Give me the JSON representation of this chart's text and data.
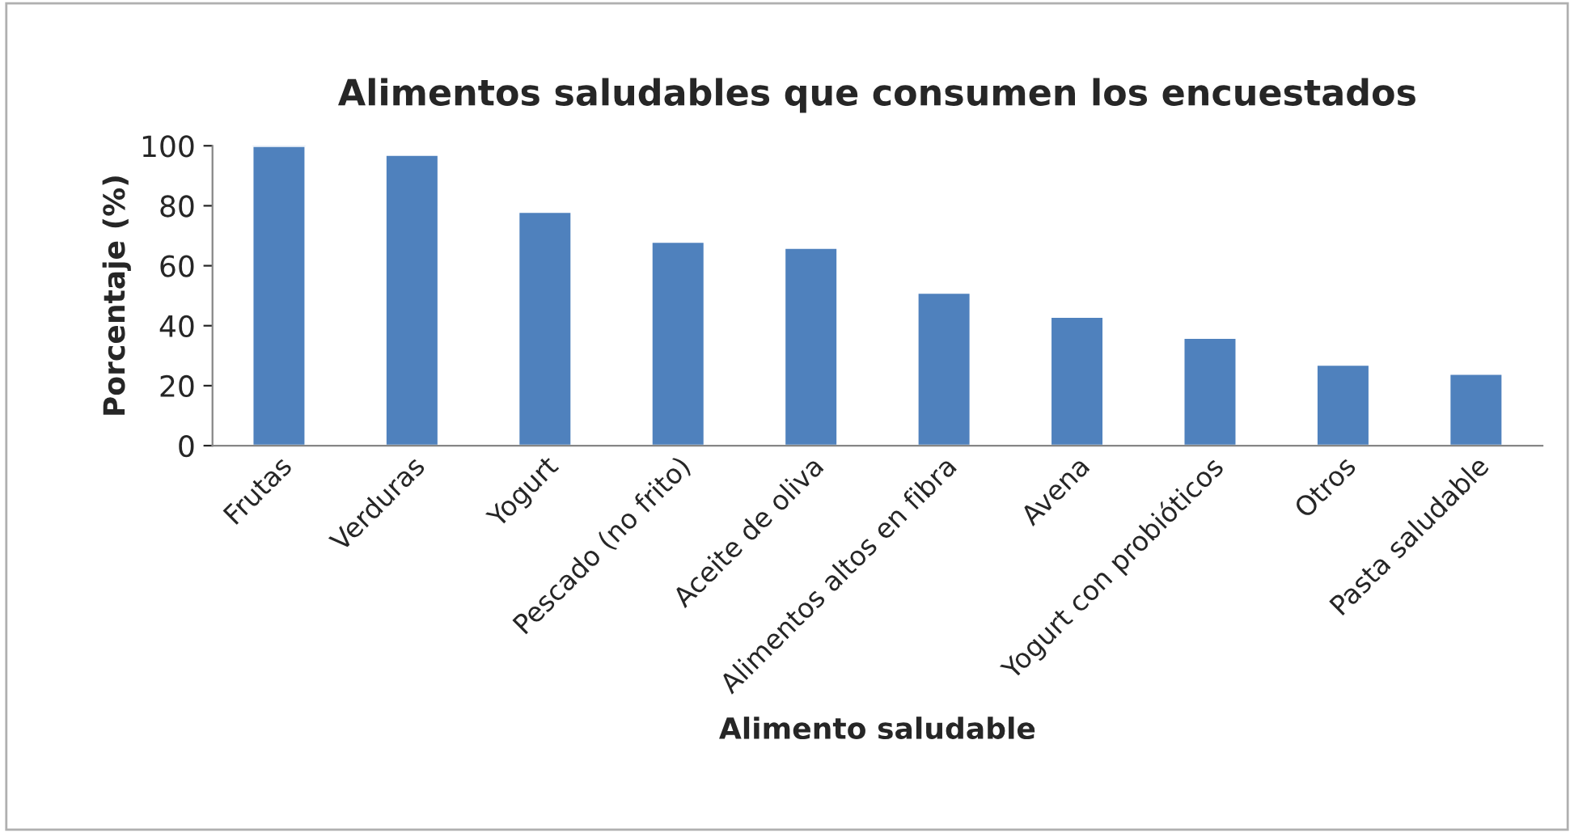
{
  "chart_data": {
    "type": "bar",
    "title": "Alimentos saludables que consumen los encuestados",
    "xlabel": "Alimento saludable",
    "ylabel": "Porcentaje (%)",
    "categories": [
      "Frutas",
      "Verduras",
      "Yogurt",
      "Pescado (no frito)",
      "Aceite de oliva",
      "Alimentos altos en fibra",
      "Avena",
      "Yogurt con probióticos",
      "Otros",
      "Pasta saludable"
    ],
    "values": [
      100,
      97,
      78,
      68,
      66,
      51,
      43,
      36,
      27,
      24
    ],
    "color": "#4f81bd",
    "ylim": [
      0,
      100
    ],
    "yticks": [
      0,
      20,
      40,
      60,
      80,
      100
    ],
    "grid": false,
    "legend": false
  }
}
